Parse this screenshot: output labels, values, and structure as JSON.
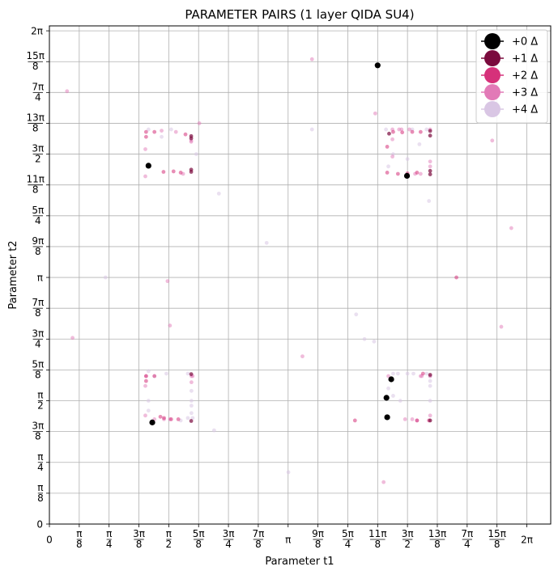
{
  "chart_data": {
    "type": "scatter",
    "title": "PARAMETER PAIRS (1 layer QIDA SU4)",
    "xlabel": "Parameter t1",
    "ylabel": "Parameter t2",
    "xlim": [
      0,
      2.1
    ],
    "ylim": [
      0,
      2.02
    ],
    "units": "multiples of pi",
    "x_ticks": [
      {
        "value": 0,
        "label": "0"
      },
      {
        "value": 0.125,
        "label": "π/8"
      },
      {
        "value": 0.25,
        "label": "π/4"
      },
      {
        "value": 0.375,
        "label": "3π/8"
      },
      {
        "value": 0.5,
        "label": "π/2"
      },
      {
        "value": 0.625,
        "label": "5π/8"
      },
      {
        "value": 0.75,
        "label": "3π/4"
      },
      {
        "value": 0.875,
        "label": "7π/8"
      },
      {
        "value": 1,
        "label": "π"
      },
      {
        "value": 1.125,
        "label": "9π/8"
      },
      {
        "value": 1.25,
        "label": "5π/4"
      },
      {
        "value": 1.375,
        "label": "11π/8"
      },
      {
        "value": 1.5,
        "label": "3π/2"
      },
      {
        "value": 1.625,
        "label": "13π/8"
      },
      {
        "value": 1.75,
        "label": "7π/4"
      },
      {
        "value": 1.875,
        "label": "15π/8"
      },
      {
        "value": 2,
        "label": "2π"
      }
    ],
    "y_ticks": [
      {
        "value": 0,
        "label": "0"
      },
      {
        "value": 0.125,
        "label": "π/8"
      },
      {
        "value": 0.25,
        "label": "π/4"
      },
      {
        "value": 0.375,
        "label": "3π/8"
      },
      {
        "value": 0.5,
        "label": "π/2"
      },
      {
        "value": 0.625,
        "label": "5π/8"
      },
      {
        "value": 0.75,
        "label": "3π/4"
      },
      {
        "value": 0.875,
        "label": "7π/8"
      },
      {
        "value": 1,
        "label": "π"
      },
      {
        "value": 1.125,
        "label": "9π/8"
      },
      {
        "value": 1.25,
        "label": "5π/4"
      },
      {
        "value": 1.375,
        "label": "11π/8"
      },
      {
        "value": 1.5,
        "label": "3π/2"
      },
      {
        "value": 1.625,
        "label": "13π/8"
      },
      {
        "value": 1.75,
        "label": "7π/4"
      },
      {
        "value": 1.875,
        "label": "15π/8"
      },
      {
        "value": 2,
        "label": "2π"
      }
    ],
    "legend_position": "top-right",
    "series": [
      {
        "name": "+0 Δ",
        "color": "#000000",
        "alpha": 1.0,
        "x": [
          1.375,
          0.415,
          1.498,
          0.431,
          1.432,
          1.412,
          1.415
        ],
        "y": [
          1.86,
          1.453,
          1.412,
          0.412,
          0.587,
          0.512,
          0.433
        ]
      },
      {
        "name": "+1 Δ",
        "color": "#7a0a3d",
        "alpha": 0.7,
        "x": [
          0.594,
          0.594,
          0.594,
          0.594,
          1.423,
          1.595,
          1.595,
          1.595,
          1.595,
          0.594,
          0.594,
          1.595,
          1.595
        ],
        "y": [
          1.564,
          1.573,
          1.428,
          1.437,
          1.583,
          1.594,
          1.575,
          1.418,
          1.432,
          0.608,
          0.418,
          0.605,
          0.42
        ]
      },
      {
        "name": "+2 Δ",
        "color": "#d6317a",
        "alpha": 0.55,
        "x": [
          0.405,
          0.405,
          0.44,
          0.478,
          0.52,
          0.55,
          0.57,
          1.44,
          1.478,
          1.52,
          1.555,
          1.415,
          1.415,
          1.46,
          1.5,
          1.54,
          1.705,
          0.405,
          0.405,
          0.44,
          0.465,
          0.48,
          0.51,
          0.54,
          1.565,
          1.59,
          1.54,
          1.28
        ],
        "y": [
          1.59,
          1.57,
          1.59,
          1.428,
          1.43,
          1.425,
          1.58,
          1.59,
          1.588,
          1.59,
          1.59,
          1.53,
          1.425,
          1.42,
          1.422,
          1.425,
          1.0,
          0.6,
          0.58,
          0.6,
          0.435,
          0.43,
          0.425,
          0.425,
          0.61,
          0.42,
          0.42,
          0.42
        ]
      },
      {
        "name": "+3 Δ",
        "color": "#e27ab7",
        "alpha": 0.5,
        "x": [
          0.074,
          0.097,
          0.495,
          0.505,
          0.628,
          1.1,
          1.365,
          1.855,
          1.935,
          1.893,
          1.06,
          0.402,
          0.402,
          0.47,
          0.53,
          0.56,
          0.594,
          0.594,
          1.437,
          1.475,
          1.508,
          1.532,
          1.595,
          1.437,
          1.437,
          1.465,
          1.555,
          1.595,
          1.595,
          0.402,
          0.402,
          0.405,
          0.44,
          0.48,
          0.505,
          0.595,
          0.595,
          0.6,
          1.54,
          1.56,
          1.595,
          1.595,
          1.4,
          1.42,
          1.49,
          1.52,
          1.555
        ],
        "y": [
          1.755,
          0.755,
          0.985,
          0.805,
          1.625,
          1.885,
          1.665,
          1.555,
          1.2,
          0.8,
          0.68,
          1.52,
          1.41,
          1.595,
          1.59,
          1.42,
          1.55,
          1.555,
          1.6,
          1.6,
          1.6,
          1.42,
          1.6,
          1.56,
          1.49,
          1.6,
          1.42,
          1.47,
          1.45,
          0.56,
          0.44,
          0.6,
          0.425,
          0.425,
          0.425,
          0.6,
          0.575,
          0.6,
          0.42,
          0.6,
          0.6,
          0.44,
          0.17,
          0.6,
          0.425,
          0.425,
          0.6
        ]
      },
      {
        "name": "+4 Δ",
        "color": "#d9c6e4",
        "alpha": 0.55,
        "x": [
          0.235,
          0.415,
          0.51,
          0.615,
          0.71,
          0.91,
          1.001,
          1.1,
          1.285,
          1.32,
          1.36,
          1.41,
          1.44,
          1.52,
          1.58,
          1.59,
          0.415,
          0.415,
          0.44,
          0.49,
          0.55,
          0.58,
          0.595,
          0.595,
          0.595,
          1.44,
          1.46,
          1.5,
          1.58,
          1.595,
          1.595,
          0.415,
          0.58,
          0.595,
          0.6,
          0.69,
          1.42,
          1.44,
          1.47,
          1.525,
          1.595,
          1.595,
          1.55,
          1.5,
          0.47,
          1.42
        ],
        "y": [
          1.0,
          1.6,
          1.6,
          1.5,
          1.34,
          1.14,
          0.21,
          1.6,
          0.85,
          0.75,
          0.74,
          1.6,
          1.5,
          1.6,
          1.6,
          1.31,
          0.62,
          0.5,
          0.6,
          0.61,
          0.42,
          0.61,
          0.54,
          0.5,
          0.48,
          0.61,
          0.61,
          0.61,
          0.61,
          0.6,
          0.56,
          0.46,
          0.43,
          0.45,
          0.43,
          0.38,
          0.55,
          0.52,
          0.5,
          0.61,
          0.58,
          0.5,
          1.54,
          1.48,
          1.57,
          1.45
        ]
      }
    ]
  }
}
